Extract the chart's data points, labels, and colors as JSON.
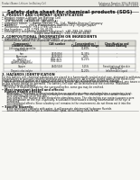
{
  "bg_color": "#f7f7f3",
  "header_left": "Product Name: Lithium Ion Battery Cell",
  "header_right_line1": "Substance Number: SDS-LIB-00019",
  "header_right_line2": "Established / Revision: Dec.1.2016",
  "title": "Safety data sheet for chemical products (SDS)",
  "s1_title": "1. PRODUCT AND COMPANY IDENTIFICATION",
  "s1_lines": [
    "• Product name: Lithium Ion Battery Cell",
    "• Product code: Cylindrical-type cell",
    "    (LR 18650U, LR18650L, LR18650A)",
    "• Company name:     Sanyo Electric Co., Ltd., Mobile Energy Company",
    "• Address:             2001, Kaminaizen, Sumoto-City, Hyogo, Japan",
    "• Telephone number: +81-(799)-26-4111",
    "• Fax number:  +81-1799-26-4129",
    "• Emergency telephone number (daytime): +81-799-26-3842",
    "                                    (Night and holiday): +81-799-26-4101"
  ],
  "s2_title": "2. COMPOSITIONAL INFORMATION ON INGREDIENTS",
  "s2_line1": "• Substance or preparation: Preparation",
  "s2_line2": "• Information about the chemical nature of product:",
  "tbl_cols": [
    5,
    58,
    104,
    140,
    193
  ],
  "tbl_hdr": [
    "Component /\nChemical name",
    "CAS number",
    "Concentration /\nConcentration range",
    "Classification and\nhazard labeling"
  ],
  "tbl_rows": [
    [
      "Lithium cobalt tantalite\n(LiMnCoO2)",
      "-",
      "30-60%",
      "-"
    ],
    [
      "Iron",
      "7439-89-6",
      "15-35%",
      "-"
    ],
    [
      "Aluminum",
      "7429-90-5",
      "2-6%",
      "-"
    ],
    [
      "Graphite\n(Flake graphite)\n(Artificial graphite)",
      "7782-42-5\n7782-44-2",
      "10-25%",
      ""
    ],
    [
      "Copper",
      "7440-50-8",
      "5-15%",
      "Sensitization of the skin\ngroup No.2"
    ],
    [
      "Organic electrolyte",
      "-",
      "10-20%",
      "Inflammable liquid"
    ]
  ],
  "s3_title": "3. HAZARDS IDENTIFICATION",
  "s3_para": [
    "For this battery cell, chemical substances are stored in a hermetically sealed metal case, designed to withstand",
    "temperatures or pressure-related conditions during normal use. As a result, during normal use, there is no",
    "physical danger of ignition or explosion and there is no danger of hazardous materials leakage.",
    "   However, if exposed to a fire, added mechanical shocks, decomposed, when electro-stimulated, any issues can",
    "be gas release cannot be operated. The battery cell case will be breached at the extreme. Hazardous",
    "materials may be released.",
    "   Moreover, if heated strongly by the surrounding fire, some gas may be emitted."
  ],
  "s3_mih": "• Most important hazard and effects:",
  "s3_human": "Human health effects:",
  "s3_human_lines": [
    "   Inhalation: The release of the electrolyte has an anesthesia action and stimulates a respiratory tract.",
    "   Skin contact: The release of the electrolyte stimulates a skin. The electrolyte skin contact causes a",
    "   sore and stimulation on the skin.",
    "   Eye contact: The release of the electrolyte stimulates eyes. The electrolyte eye contact causes a sore",
    "   and stimulation on the eye. Especially, a substance that causes a strong inflammation of the eye is",
    "   contained.",
    "   Environmental effects: Since a battery cell remains in the environment, do not throw out it into the",
    "   environment."
  ],
  "s3_specific": "• Specific hazards:",
  "s3_specific_lines": [
    "   If the electrolyte contacts with water, it will generate detrimental hydrogen fluoride.",
    "   Since the used electrolyte is inflammable liquid, do not bring close to fire."
  ]
}
